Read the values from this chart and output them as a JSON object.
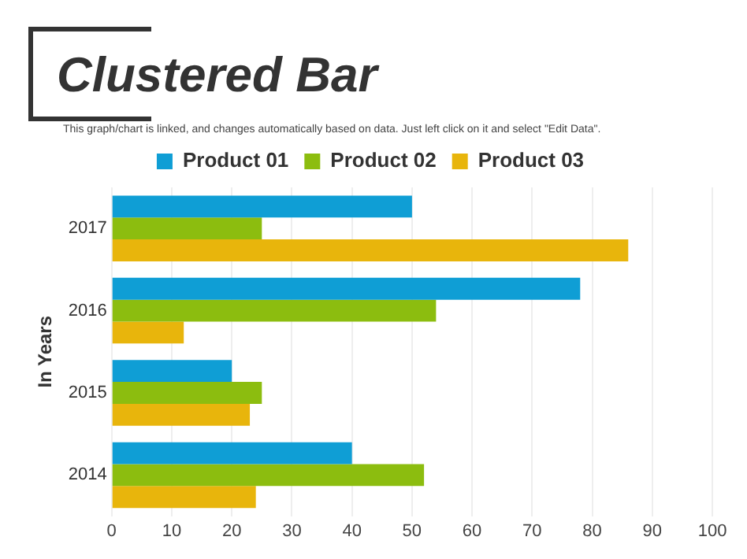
{
  "chart_data": {
    "type": "bar",
    "orientation": "horizontal",
    "title": "Clustered Bar",
    "subtitle": "This graph/chart is linked, and changes automatically based on data. Just left click on it and select \"Edit Data\".",
    "ylabel": "In Years",
    "categories": [
      "2017",
      "2016",
      "2015",
      "2014"
    ],
    "series": [
      {
        "name": "Product 01",
        "color": "#0f9ed5",
        "values": [
          50,
          78,
          20,
          40
        ]
      },
      {
        "name": "Product 02",
        "color": "#8cbd0f",
        "values": [
          25,
          54,
          25,
          52
        ]
      },
      {
        "name": "Product 03",
        "color": "#e8b50c",
        "values": [
          86,
          12,
          23,
          24
        ]
      }
    ],
    "xlim": [
      0,
      100
    ],
    "xticks": [
      0,
      10,
      20,
      30,
      40,
      50,
      60,
      70,
      80,
      90,
      100
    ],
    "grid": "x",
    "legend": "top"
  }
}
